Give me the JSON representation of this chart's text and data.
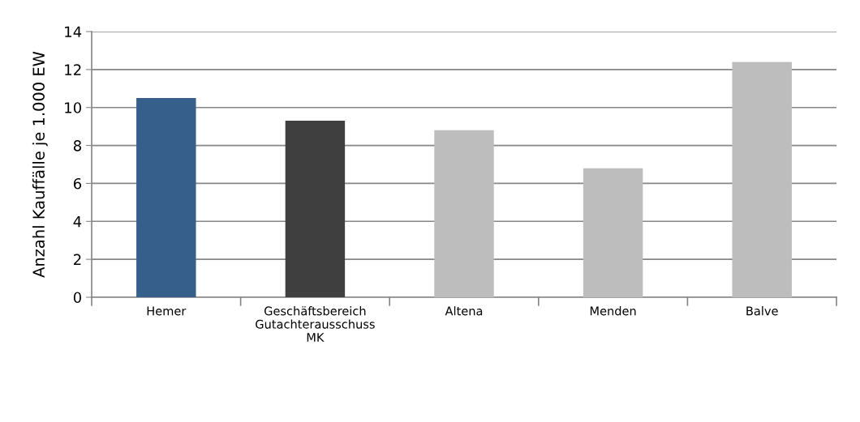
{
  "chart_data": {
    "type": "bar",
    "ylabel": "Anzahl Kauffälle je 1.000 EW",
    "categories": [
      "Hemer",
      "Geschäftsbereich Gutachterausschuss MK",
      "Altena",
      "Menden",
      "Balve"
    ],
    "values": [
      10.5,
      9.3,
      8.8,
      6.8,
      12.4
    ],
    "colors": [
      "#365f8c",
      "#3f3f3f",
      "#bdbdbd",
      "#bdbdbd",
      "#bdbdbd"
    ],
    "ylim": [
      0,
      14
    ],
    "yticks": [
      0,
      2,
      4,
      6,
      8,
      10,
      12,
      14
    ],
    "grid": "y",
    "legend": false
  }
}
